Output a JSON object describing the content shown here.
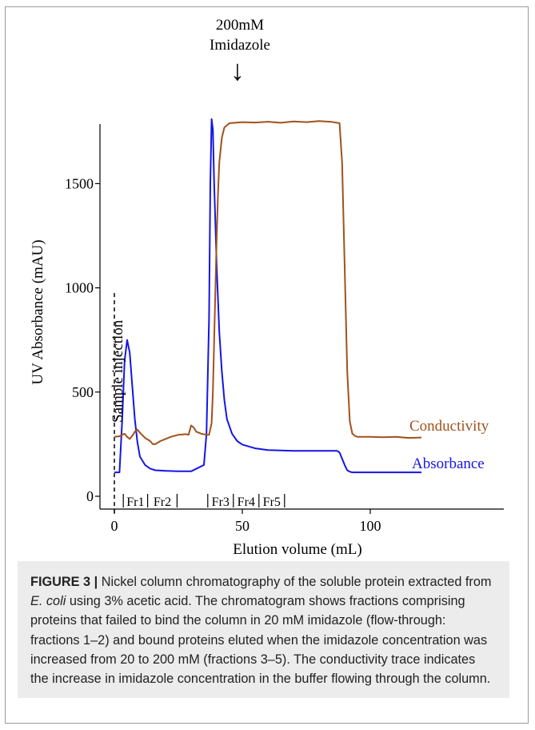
{
  "chart_data": {
    "type": "line",
    "xlabel": "Elution volume (mL)",
    "ylabel": "UV Absorbance (mAU)",
    "xlim": [
      -2,
      121
    ],
    "ylim": [
      -50,
      1800
    ],
    "xticks": [
      0,
      50,
      100
    ],
    "yticks": [
      0,
      500,
      1000,
      1500
    ],
    "grid": false,
    "legend": "none",
    "series": [
      {
        "name": "Absorbance",
        "color": "#1515e6",
        "x": [
          0,
          2,
          3,
          4,
          5,
          6,
          7,
          8,
          9,
          10,
          12,
          14,
          16,
          20,
          25,
          30,
          35,
          36,
          37,
          37.5,
          38,
          38.5,
          39,
          40,
          41,
          42,
          43,
          44,
          46,
          48,
          50,
          55,
          60,
          70,
          80,
          87,
          88,
          89,
          90,
          91,
          92,
          93,
          95,
          100,
          110,
          120
        ],
        "y": [
          115,
          115,
          350,
          650,
          750,
          690,
          530,
          370,
          260,
          190,
          150,
          133,
          125,
          122,
          120,
          120,
          150,
          300,
          850,
          1500,
          1810,
          1760,
          1500,
          1100,
          790,
          600,
          460,
          370,
          300,
          265,
          248,
          230,
          222,
          218,
          218,
          218,
          210,
          180,
          150,
          125,
          118,
          115,
          115,
          115,
          115,
          115
        ]
      },
      {
        "name": "Conductivity",
        "color": "#a0521c",
        "x": [
          0,
          2,
          3,
          4,
          5,
          6,
          7,
          8,
          9,
          10,
          12,
          14,
          15,
          16,
          18,
          20,
          22,
          25,
          28,
          29,
          30,
          31,
          32,
          34,
          36,
          37,
          38,
          38.5,
          39,
          39.5,
          40,
          40.5,
          41,
          42,
          43,
          45,
          50,
          55,
          60,
          65,
          70,
          75,
          80,
          85,
          88,
          89,
          90,
          91,
          92,
          93,
          94,
          95,
          100,
          105,
          110,
          115,
          120
        ],
        "y": [
          285,
          288,
          295,
          300,
          285,
          275,
          290,
          310,
          320,
          305,
          280,
          265,
          250,
          250,
          265,
          275,
          285,
          295,
          298,
          295,
          340,
          330,
          310,
          300,
          295,
          295,
          350,
          500,
          750,
          1000,
          1250,
          1450,
          1600,
          1720,
          1770,
          1790,
          1795,
          1793,
          1797,
          1792,
          1798,
          1795,
          1800,
          1796,
          1790,
          1600,
          1100,
          600,
          360,
          300,
          290,
          285,
          285,
          283,
          285,
          280,
          282
        ]
      }
    ],
    "annotations": {
      "imidazole_line1": "200mM",
      "imidazole_line2": "Imidazole",
      "arrow": "↓",
      "sample_injection": "Sample injection",
      "conductivity_label": "Conductivity",
      "absorbance_label": "Absorbance"
    },
    "fractions": [
      {
        "label": "Fr1",
        "x_start": 3.5,
        "x_end": 13
      },
      {
        "label": "Fr2",
        "x_start": 13,
        "x_end": 24.5
      },
      {
        "label": "Fr3",
        "x_start": 36.5,
        "x_end": 46.5
      },
      {
        "label": "Fr4",
        "x_start": 46.5,
        "x_end": 56.5
      },
      {
        "label": "Fr5",
        "x_start": 56.5,
        "x_end": 66.5
      }
    ]
  },
  "caption": {
    "label": "FIGURE 3 |",
    "text_1": "Nickel column chromatography of the soluble protein extracted from",
    "italic": "E. coli",
    "text_2": "using 3% acetic acid. The chromatogram shows fractions comprising proteins that failed to bind the column in 20 mM imidazole (flow-through: fractions 1–2) and bound proteins eluted when the imidazole concentration was increased from 20 to 200 mM (fractions 3–5). The conductivity trace indicates the increase in imidazole concentration in the buffer flowing through the column."
  }
}
